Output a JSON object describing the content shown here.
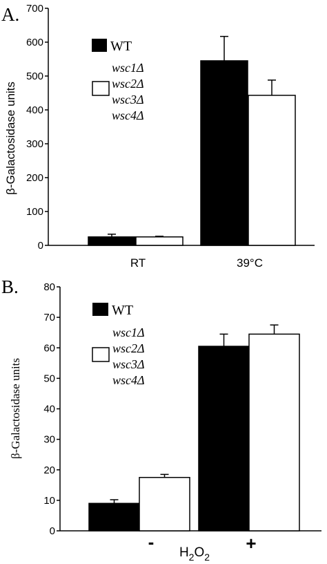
{
  "chart_data": [
    {
      "type": "bar",
      "panel": "A.",
      "ylabel": "β-Galactosidase units",
      "ylim": [
        0,
        700
      ],
      "yticks": [
        0,
        100,
        200,
        300,
        400,
        500,
        600,
        700
      ],
      "categories": [
        "RT",
        "39°C"
      ],
      "series": [
        {
          "name": "WT",
          "color": "#000000",
          "values": [
            25,
            545
          ],
          "errors": [
            8,
            72
          ]
        },
        {
          "name": "wsc1Δ wsc2Δ wsc3Δ wsc4Δ",
          "color": "#ffffff",
          "values": [
            25,
            443
          ],
          "errors": [
            2,
            45
          ]
        }
      ],
      "legend": {
        "wt": "WT",
        "mutant_lines": [
          "wsc1Δ",
          "wsc2Δ",
          "wsc3Δ",
          "wsc4Δ"
        ]
      }
    },
    {
      "type": "bar",
      "panel": "B.",
      "ylabel": "β-Galactosidase units",
      "ylim": [
        0,
        80
      ],
      "yticks": [
        0,
        10,
        20,
        30,
        40,
        50,
        60,
        70,
        80
      ],
      "categories": [
        "-",
        "+"
      ],
      "xlabel": "H2O2",
      "series": [
        {
          "name": "WT",
          "color": "#000000",
          "values": [
            9,
            60.5
          ],
          "errors": [
            1.2,
            4
          ]
        },
        {
          "name": "wsc1Δ wsc2Δ wsc3Δ wsc4Δ",
          "color": "#ffffff",
          "values": [
            17.5,
            64.5
          ],
          "errors": [
            1,
            3
          ]
        }
      ],
      "legend": {
        "wt": "WT",
        "mutant_lines": [
          "wsc1Δ",
          "wsc2Δ",
          "wsc3Δ",
          "wsc4Δ"
        ]
      }
    }
  ]
}
